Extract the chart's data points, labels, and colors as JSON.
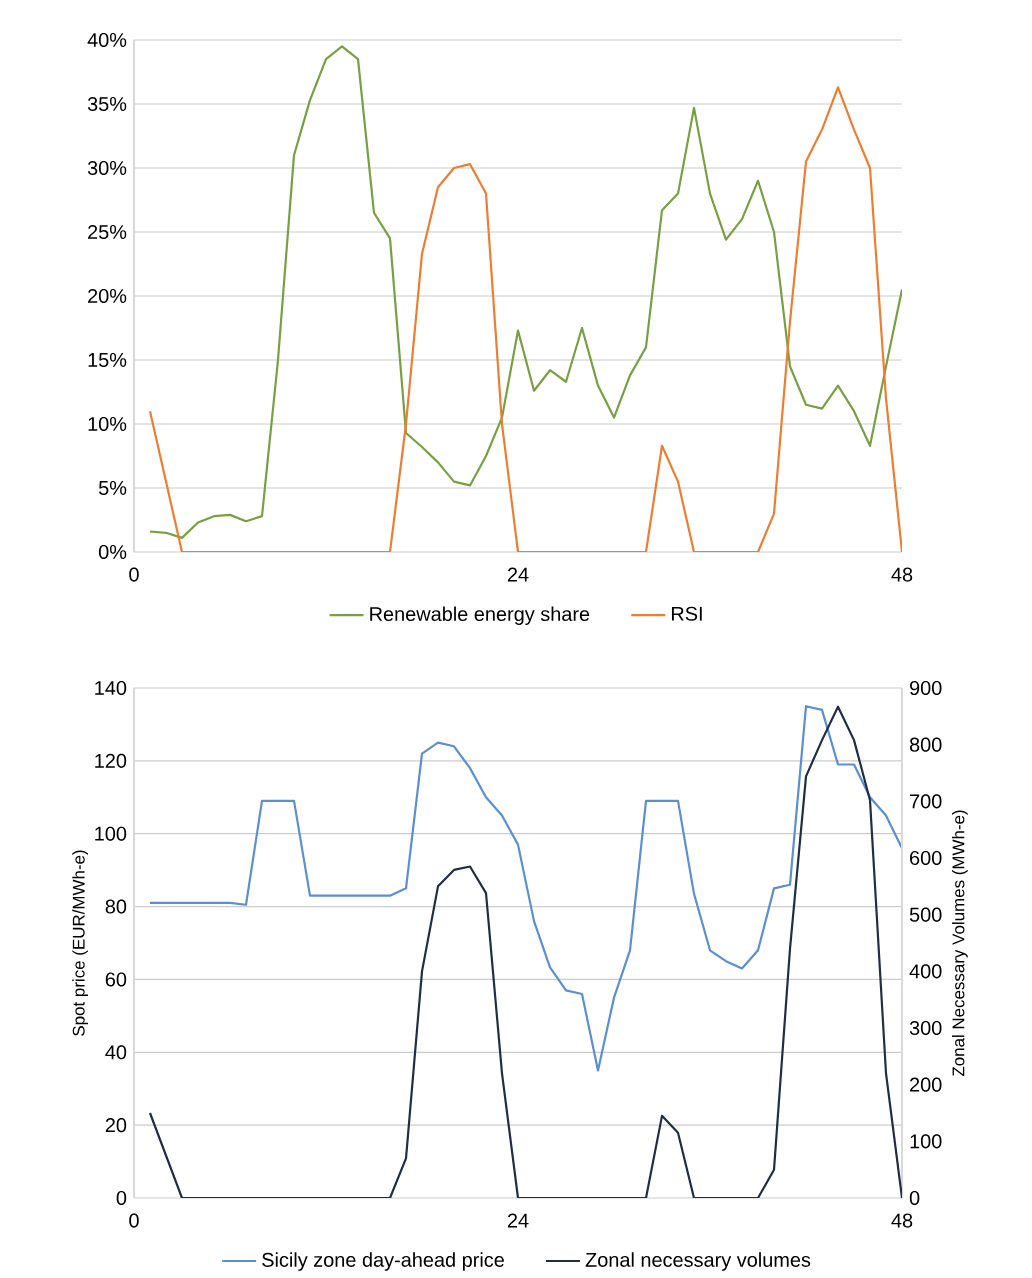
{
  "chart_data": [
    {
      "type": "line",
      "x": [
        1,
        2,
        3,
        4,
        5,
        6,
        7,
        8,
        9,
        10,
        11,
        12,
        13,
        14,
        15,
        16,
        17,
        18,
        19,
        20,
        21,
        22,
        23,
        24,
        25,
        26,
        27,
        28,
        29,
        30,
        31,
        32,
        33,
        34,
        35,
        36,
        37,
        38,
        39,
        40,
        41,
        42,
        43,
        44,
        45,
        46,
        47,
        48
      ],
      "series": [
        {
          "name": "Renewable energy share",
          "color": "#77a043",
          "values": [
            1.6,
            1.5,
            1.1,
            2.3,
            2.8,
            2.9,
            2.4,
            2.8,
            15,
            31,
            35.3,
            38.5,
            39.5,
            38.5,
            26.5,
            24.5,
            9.3,
            8.2,
            7,
            5.5,
            5.2,
            7.5,
            10.5,
            17.3,
            12.6,
            14.2,
            13.3,
            17.5,
            13,
            10.5,
            13.8,
            16,
            26.7,
            28,
            34.7,
            28,
            24.4,
            26,
            29,
            25,
            14.5,
            11.5,
            11.2,
            13,
            11,
            8.3,
            14.5,
            20.5
          ]
        },
        {
          "name": "RSI",
          "color": "#ed7d31",
          "values": [
            11,
            5.5,
            0,
            0,
            0,
            0,
            0,
            0,
            0,
            0,
            0,
            0,
            0,
            0,
            0,
            0,
            10,
            23.3,
            28.5,
            30,
            30.3,
            28,
            10,
            0,
            0,
            0,
            0,
            0,
            0,
            0,
            0,
            0,
            8.3,
            5.5,
            0,
            0,
            0,
            0,
            0,
            3,
            18,
            30.5,
            33,
            36.3,
            33,
            30,
            12,
            0
          ]
        }
      ],
      "xlim": [
        0,
        48
      ],
      "xticks": [
        0,
        24,
        48
      ],
      "ylim": [
        0,
        40
      ],
      "yticks": [
        {
          "value": 0,
          "label": "0%"
        },
        {
          "value": 5,
          "label": "5%"
        },
        {
          "value": 10,
          "label": "10%"
        },
        {
          "value": 15,
          "label": "15%"
        },
        {
          "value": 20,
          "label": "20%"
        },
        {
          "value": 25,
          "label": "25%"
        },
        {
          "value": 30,
          "label": "30%"
        },
        {
          "value": 35,
          "label": "35%"
        },
        {
          "value": 40,
          "label": "40%"
        }
      ],
      "grid": "y",
      "legend": "bottom"
    },
    {
      "type": "line",
      "x": [
        1,
        2,
        3,
        4,
        5,
        6,
        7,
        8,
        9,
        10,
        11,
        12,
        13,
        14,
        15,
        16,
        17,
        18,
        19,
        20,
        21,
        22,
        23,
        24,
        25,
        26,
        27,
        28,
        29,
        30,
        31,
        32,
        33,
        34,
        35,
        36,
        37,
        38,
        39,
        40,
        41,
        42,
        43,
        44,
        45,
        46,
        47,
        48
      ],
      "series": [
        {
          "name": "Sicily zone day-ahead price",
          "color": "#5b8fd0",
          "values": [
            81,
            81,
            81,
            81,
            81,
            81,
            80.5,
            109,
            109,
            109,
            83,
            83,
            83,
            83,
            83,
            83,
            85,
            122,
            125,
            124,
            118,
            110,
            105,
            97,
            76,
            63.3,
            57,
            56,
            35,
            55,
            68,
            109,
            109,
            109,
            83.5,
            68,
            65,
            63,
            68,
            85,
            86,
            135,
            134,
            119,
            119,
            110,
            105,
            96
          ]
        },
        {
          "name": "Zonal necessary volumes",
          "color": "#1f2d45",
          "axis": "y2",
          "values": [
            150,
            75,
            0,
            0,
            0,
            0,
            0,
            0,
            0,
            0,
            0,
            0,
            0,
            0,
            0,
            0,
            70,
            400,
            550,
            579,
            585,
            538,
            220,
            0,
            0,
            0,
            0,
            0,
            0,
            0,
            0,
            0,
            145,
            115,
            0,
            0,
            0,
            0,
            0,
            50,
            440,
            744,
            808,
            867,
            808,
            702,
            220,
            0
          ]
        }
      ],
      "xlim": [
        0,
        48
      ],
      "xticks": [
        0,
        24,
        48
      ],
      "ylim": [
        0,
        140
      ],
      "yticks": [
        0,
        20,
        40,
        60,
        80,
        100,
        120,
        140
      ],
      "y2lim": [
        0,
        900
      ],
      "y2ticks": [
        0,
        100,
        200,
        300,
        400,
        500,
        600,
        700,
        800,
        900
      ],
      "ylabel": "Spot price (EUR/MWh-e)",
      "y2label": "Zonal Necessary Volumes (MWh-e)",
      "grid": "y",
      "legend": "bottom"
    }
  ]
}
